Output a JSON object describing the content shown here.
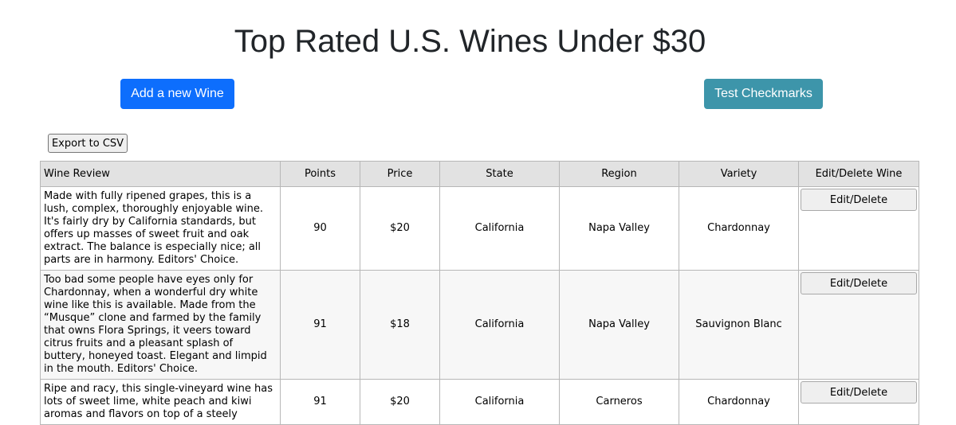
{
  "page": {
    "title": "Top Rated U.S. Wines Under $30",
    "add_button": "Add a new Wine",
    "test_button": "Test Checkmarks",
    "export_button": "Export to CSV"
  },
  "colors": {
    "primary": "#0d6efd",
    "info": "#3d95aa",
    "header_bg": "#e2e2e2"
  },
  "table": {
    "headers": [
      "Wine Review",
      "Points",
      "Price",
      "State",
      "Region",
      "Variety",
      "Edit/Delete Wine"
    ],
    "rows": [
      {
        "review": "Made with fully ripened grapes, this is a lush, complex, thoroughly enjoyable wine. It's fairly dry by California standards, but offers up masses of sweet fruit and oak extract. The balance is especially nice; all parts are in harmony. Editors' Choice.",
        "points": "90",
        "price": "$20",
        "state": "California",
        "region": "Napa Valley",
        "variety": "Chardonnay",
        "action": "Edit/Delete"
      },
      {
        "review": "Too bad some people have eyes only for Chardonnay, when a wonderful dry white wine like this is available. Made from the “Musque” clone and farmed by the family that owns Flora Springs, it veers toward citrus fruits and a pleasant splash of buttery, honeyed toast. Elegant and limpid in the mouth. Editors' Choice.",
        "points": "91",
        "price": "$18",
        "state": "California",
        "region": "Napa Valley",
        "variety": "Sauvignon Blanc",
        "action": "Edit/Delete"
      },
      {
        "review": "Ripe and racy, this single-vineyard wine has lots of sweet lime, white peach and kiwi aromas and flavors on top of a steely",
        "points": "91",
        "price": "$20",
        "state": "California",
        "region": "Carneros",
        "variety": "Chardonnay",
        "action": "Edit/Delete"
      }
    ]
  }
}
